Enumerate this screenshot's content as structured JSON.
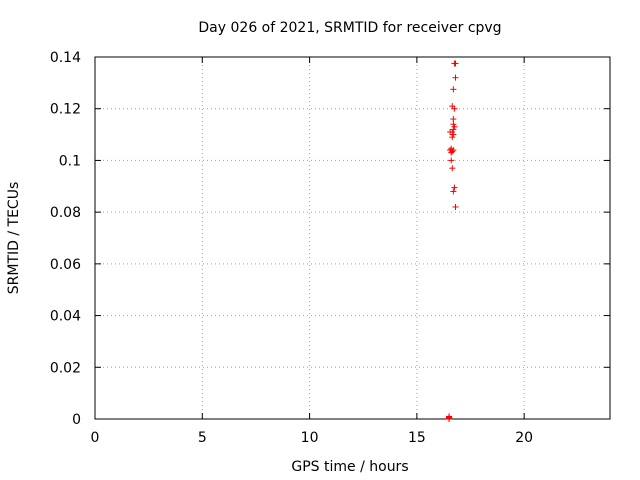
{
  "chart_data": {
    "type": "scatter",
    "title": "Day 026 of 2021, SRMTID for receiver cpvg",
    "xlabel": "GPS time / hours",
    "ylabel": "SRMTID / TECUs",
    "xlim": [
      0,
      24
    ],
    "ylim": [
      0,
      0.14
    ],
    "grid": true,
    "x_ticks": [
      0,
      5,
      10,
      15,
      20
    ],
    "x_tick_labels": [
      "0",
      "5",
      "10",
      "15",
      "20"
    ],
    "y_ticks": [
      0,
      0.02,
      0.04,
      0.06,
      0.08,
      0.1,
      0.12,
      0.14
    ],
    "y_tick_labels": [
      "0",
      "0.02",
      "0.04",
      "0.06",
      "0.08",
      "0.1",
      "0.12",
      "0.14"
    ],
    "marker": "+",
    "colors": {
      "points": "#ff0000",
      "grid": "#a0a0a0",
      "axes": "#000000"
    },
    "series": [
      {
        "name": "SRMTID",
        "points": [
          [
            16.5,
            0.0
          ],
          [
            16.5,
            0.0002
          ],
          [
            16.5,
            0.0004
          ],
          [
            16.5,
            0.0006
          ],
          [
            16.5,
            0.0008
          ],
          [
            16.5,
            0.001
          ],
          [
            16.75,
            0.1375
          ],
          [
            16.8,
            0.1375
          ],
          [
            16.8,
            0.132
          ],
          [
            16.7,
            0.1275
          ],
          [
            16.65,
            0.121
          ],
          [
            16.75,
            0.12
          ],
          [
            16.7,
            0.116
          ],
          [
            16.7,
            0.114
          ],
          [
            16.75,
            0.113
          ],
          [
            16.7,
            0.112
          ],
          [
            16.55,
            0.111
          ],
          [
            16.65,
            0.111
          ],
          [
            16.7,
            0.11
          ],
          [
            16.65,
            0.109
          ],
          [
            16.6,
            0.1045
          ],
          [
            16.55,
            0.104
          ],
          [
            16.7,
            0.104
          ],
          [
            16.65,
            0.1035
          ],
          [
            16.6,
            0.103
          ],
          [
            16.6,
            0.1
          ],
          [
            16.65,
            0.097
          ],
          [
            16.75,
            0.0895
          ],
          [
            16.7,
            0.088
          ],
          [
            16.8,
            0.082
          ]
        ]
      }
    ]
  }
}
